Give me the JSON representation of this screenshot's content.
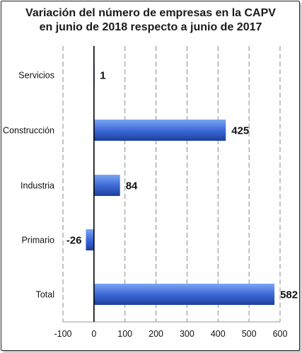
{
  "chart_data": {
    "type": "bar",
    "orientation": "horizontal",
    "title_lines": [
      "Variación del número de empresas en la CAPV",
      "en junio de 2018 respecto a junio de 2017"
    ],
    "categories": [
      "Servicios",
      "Construcción",
      "Industria",
      "Primario",
      "Total"
    ],
    "values": [
      1,
      425,
      84,
      -26,
      582
    ],
    "data_labels": [
      "1",
      "425",
      "84",
      "-26",
      "582"
    ],
    "xlim": [
      -100,
      600
    ],
    "x_ticks": [
      -100,
      0,
      100,
      200,
      300,
      400,
      500,
      600
    ],
    "x_tick_labels": [
      "-100",
      "0",
      "100",
      "200",
      "300",
      "400",
      "500",
      "600"
    ],
    "grid": "vertical dashed",
    "legend": "none",
    "colors": {
      "bar_dark": "#1f44a8",
      "bar_light": "#6c9bf2",
      "grid": "#8a8a8a",
      "axis": "#000000"
    }
  }
}
